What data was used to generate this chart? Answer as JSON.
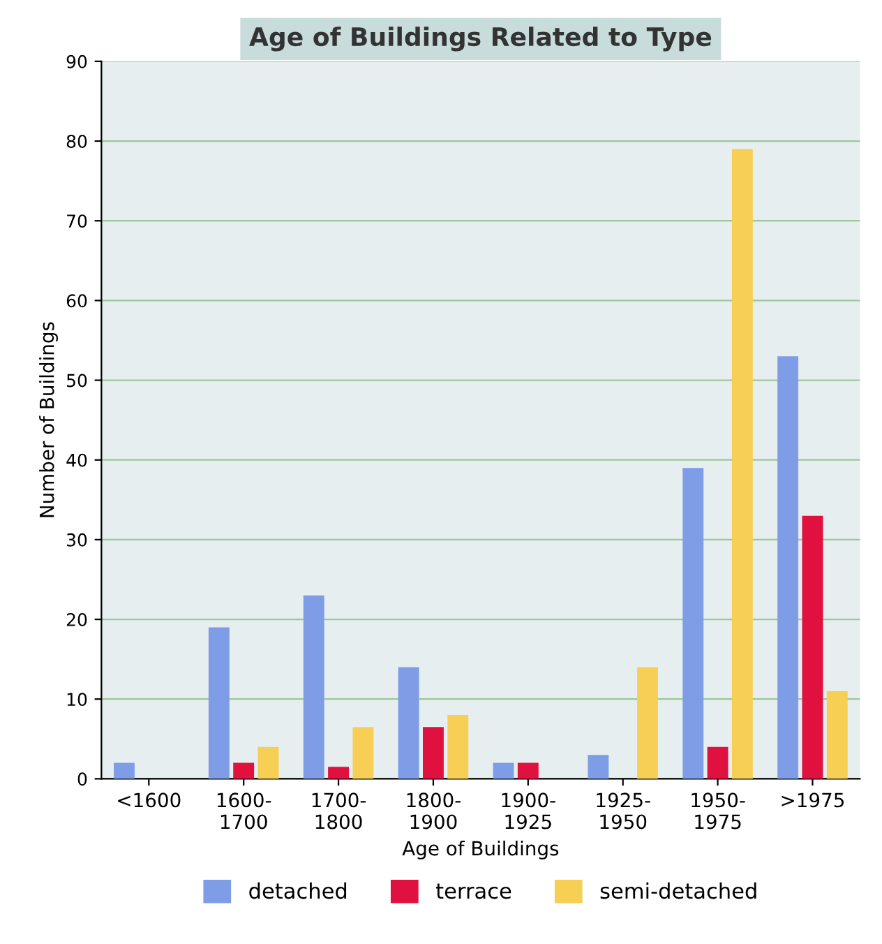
{
  "chart_data": {
    "type": "bar",
    "title": "Age of Buildings Related to Type",
    "xlabel": "Age of Buildings",
    "ylabel": "Number of Buildings",
    "categories": [
      "<1600",
      "1600-\n1700",
      "1700-\n1800",
      "1800-\n1900",
      "1900-\n1925",
      "1925-\n1950",
      "1950-\n1975",
      ">1975"
    ],
    "series": [
      {
        "name": "detached",
        "color": "#7f9de6",
        "values": [
          2,
          19,
          23,
          14,
          2,
          3,
          39,
          53
        ]
      },
      {
        "name": "terrace",
        "color": "#e0103f",
        "values": [
          0,
          2,
          1.5,
          6.5,
          2,
          0,
          4,
          33
        ]
      },
      {
        "name": "semi-detached",
        "color": "#f7cf55",
        "values": [
          0,
          4,
          6.5,
          8,
          0,
          14,
          79,
          11
        ]
      }
    ],
    "ylim": [
      0,
      90
    ],
    "yticks": [
      0,
      10,
      20,
      30,
      40,
      50,
      60,
      70,
      80,
      90
    ],
    "grid": "y",
    "legend": "bottom"
  }
}
